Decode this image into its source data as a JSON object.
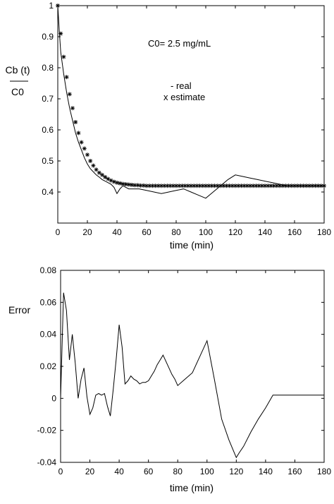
{
  "chart_data": [
    {
      "type": "line",
      "xlabel": "time (min)",
      "ylabel_numerator": "Cb (t)",
      "ylabel_denominator": "C0",
      "xlim": [
        0,
        180
      ],
      "ylim": [
        0.3,
        1.0
      ],
      "xticks": [
        "0",
        "20",
        "40",
        "60",
        "80",
        "100",
        "120",
        "140",
        "160",
        "180"
      ],
      "yticks": [
        "0.4",
        "0.5",
        "0.6",
        "0.7",
        "0.8",
        "0.9",
        "1"
      ],
      "annotation_c0": "C0=  2.5 mg/mL",
      "legend": [
        "- real",
        "x estimate"
      ],
      "grid": false,
      "series": [
        {
          "name": "real",
          "x": [
            0,
            1,
            2,
            4,
            6,
            8,
            10,
            12,
            14,
            16,
            18,
            20,
            22,
            24,
            26,
            28,
            30,
            32,
            34,
            36,
            38,
            40,
            42,
            44,
            46,
            48,
            50,
            55,
            60,
            65,
            70,
            75,
            80,
            85,
            90,
            95,
            100,
            105,
            110,
            115,
            120,
            125,
            130,
            135,
            140,
            145,
            150,
            155,
            160,
            165,
            170,
            175,
            180
          ],
          "y": [
            1.0,
            0.92,
            0.85,
            0.78,
            0.72,
            0.67,
            0.63,
            0.59,
            0.56,
            0.535,
            0.51,
            0.49,
            0.475,
            0.465,
            0.455,
            0.448,
            0.44,
            0.435,
            0.43,
            0.425,
            0.415,
            0.395,
            0.41,
            0.42,
            0.415,
            0.41,
            0.41,
            0.41,
            0.405,
            0.4,
            0.395,
            0.4,
            0.405,
            0.41,
            0.4,
            0.39,
            0.38,
            0.4,
            0.42,
            0.44,
            0.455,
            0.45,
            0.445,
            0.44,
            0.435,
            0.43,
            0.425,
            0.42,
            0.42,
            0.42,
            0.42,
            0.42,
            0.42
          ]
        },
        {
          "name": "estimate",
          "x": [
            0,
            2,
            4,
            6,
            8,
            10,
            12,
            14,
            16,
            18,
            20,
            22,
            24,
            26,
            28,
            30,
            32,
            34,
            36,
            38,
            40,
            42,
            44,
            46,
            48,
            50,
            52,
            54,
            56,
            58,
            60,
            62,
            64,
            66,
            68,
            70,
            72,
            74,
            76,
            78,
            80,
            82,
            84,
            86,
            88,
            90,
            92,
            94,
            96,
            98,
            100,
            102,
            104,
            106,
            108,
            110,
            112,
            114,
            116,
            118,
            120,
            122,
            124,
            126,
            128,
            130,
            132,
            134,
            136,
            138,
            140,
            142,
            144,
            146,
            148,
            150,
            152,
            154,
            156,
            158,
            160,
            162,
            164,
            166,
            168,
            170,
            172,
            174,
            176,
            178,
            180
          ],
          "y": [
            1.0,
            0.91,
            0.835,
            0.77,
            0.715,
            0.67,
            0.625,
            0.59,
            0.56,
            0.54,
            0.52,
            0.5,
            0.485,
            0.472,
            0.462,
            0.455,
            0.448,
            0.442,
            0.437,
            0.433,
            0.43,
            0.428,
            0.426,
            0.425,
            0.424,
            0.423,
            0.422,
            0.422,
            0.421,
            0.421,
            0.42,
            0.42,
            0.42,
            0.42,
            0.42,
            0.42,
            0.42,
            0.42,
            0.42,
            0.42,
            0.42,
            0.42,
            0.42,
            0.42,
            0.42,
            0.42,
            0.42,
            0.42,
            0.42,
            0.42,
            0.42,
            0.42,
            0.42,
            0.42,
            0.42,
            0.42,
            0.42,
            0.42,
            0.42,
            0.42,
            0.42,
            0.42,
            0.42,
            0.42,
            0.42,
            0.42,
            0.42,
            0.42,
            0.42,
            0.42,
            0.42,
            0.42,
            0.42,
            0.42,
            0.42,
            0.42,
            0.42,
            0.42,
            0.42,
            0.42,
            0.42,
            0.42,
            0.42,
            0.42,
            0.42,
            0.42,
            0.42,
            0.42,
            0.42,
            0.42,
            0.42
          ]
        }
      ]
    },
    {
      "type": "line",
      "xlabel": "time (min)",
      "ylabel": "Error",
      "xlim": [
        0,
        180
      ],
      "ylim": [
        -0.04,
        0.08
      ],
      "xticks": [
        "0",
        "20",
        "40",
        "60",
        "80",
        "100",
        "120",
        "140",
        "160",
        "180"
      ],
      "yticks": [
        "-0.04",
        "-0.02",
        "0",
        "0.02",
        "0.04",
        "0.06",
        "0.08"
      ],
      "grid": false,
      "series": [
        {
          "x": [
            0,
            2,
            4,
            6,
            8,
            10,
            12,
            14,
            16,
            18,
            20,
            22,
            24,
            26,
            28,
            30,
            32,
            34,
            36,
            38,
            40,
            42,
            44,
            46,
            48,
            50,
            52,
            54,
            56,
            58,
            60,
            62,
            64,
            66,
            68,
            70,
            72,
            74,
            76,
            78,
            80,
            85,
            90,
            95,
            100,
            105,
            110,
            115,
            120,
            122,
            125,
            130,
            135,
            140,
            145,
            150,
            155,
            160,
            165,
            170,
            175,
            180
          ],
          "y": [
            0,
            0.066,
            0.055,
            0.024,
            0.04,
            0.022,
            0,
            0.012,
            0.019,
            0.001,
            -0.01,
            -0.006,
            0.002,
            0.003,
            0.002,
            0.003,
            -0.005,
            -0.011,
            0.006,
            0.025,
            0.046,
            0.032,
            0.009,
            0.011,
            0.014,
            0.012,
            0.011,
            0.009,
            0.01,
            0.01,
            0.011,
            0.014,
            0.017,
            0.021,
            0.024,
            0.027,
            0.023,
            0.019,
            0.015,
            0.012,
            0.008,
            0.012,
            0.016,
            0.026,
            0.036,
            0.012,
            -0.013,
            -0.026,
            -0.037,
            -0.034,
            -0.03,
            -0.021,
            -0.013,
            -0.006,
            0.002,
            0.002,
            0.002,
            0.002,
            0.002,
            0.002,
            0.002,
            0.002
          ]
        }
      ]
    }
  ]
}
